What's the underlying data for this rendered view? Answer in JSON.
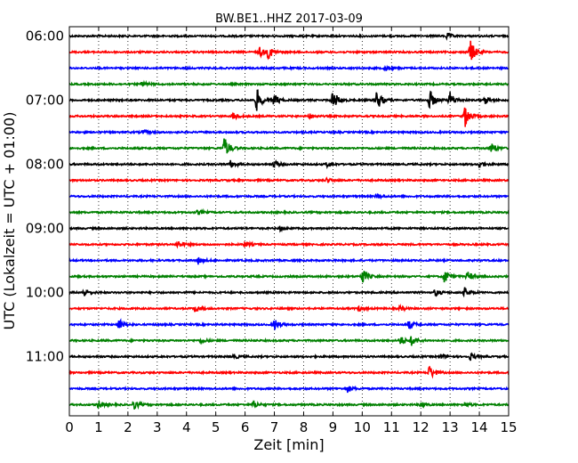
{
  "chart_data": {
    "type": "line",
    "title": "BW.BE1..HHZ 2017-03-09",
    "xlabel": "Zeit  [min]",
    "ylabel": "UTC (Lokalzeit = UTC + 01:00)",
    "xlim": [
      0,
      15
    ],
    "x_ticks": [
      "0",
      "1",
      "2",
      "3",
      "4",
      "5",
      "6",
      "7",
      "8",
      "9",
      "10",
      "11",
      "12",
      "13",
      "14",
      "15"
    ],
    "y_tick_labels": [
      "06:00",
      "07:00",
      "08:00",
      "09:00",
      "10:00",
      "11:00"
    ],
    "grid": "vertical dotted",
    "line_colors": [
      "#000000",
      "#ff0000",
      "#0000ff",
      "#008000"
    ],
    "traces": [
      {
        "start": "06:00",
        "events": [
          [
            12.9,
            0.25
          ]
        ]
      },
      {
        "start": "06:15",
        "events": [
          [
            6.5,
            0.4
          ],
          [
            6.8,
            0.55
          ],
          [
            13.7,
            1.0
          ]
        ]
      },
      {
        "start": "06:30",
        "events": [
          [
            10.8,
            0.2
          ]
        ]
      },
      {
        "start": "06:45",
        "events": [
          [
            2.5,
            0.2
          ]
        ]
      },
      {
        "start": "07:00",
        "events": [
          [
            6.4,
            1.0
          ],
          [
            7.0,
            0.5
          ],
          [
            9.0,
            0.9
          ],
          [
            10.5,
            0.9
          ],
          [
            12.3,
            0.9
          ],
          [
            13.0,
            0.7
          ],
          [
            14.2,
            0.3
          ]
        ]
      },
      {
        "start": "07:15",
        "events": [
          [
            5.6,
            0.3
          ],
          [
            8.2,
            0.2
          ],
          [
            13.5,
            1.0
          ]
        ]
      },
      {
        "start": "07:30",
        "events": [
          [
            2.5,
            0.2
          ]
        ]
      },
      {
        "start": "07:45",
        "events": [
          [
            5.3,
            1.0
          ],
          [
            14.4,
            0.5
          ]
        ]
      },
      {
        "start": "08:00",
        "events": [
          [
            5.5,
            0.3
          ],
          [
            7.0,
            0.3
          ],
          [
            8.8,
            0.2
          ],
          [
            14.0,
            0.3
          ]
        ]
      },
      {
        "start": "08:15",
        "events": [
          [
            8.8,
            0.2
          ]
        ]
      },
      {
        "start": "08:30",
        "events": [
          [
            10.5,
            0.2
          ]
        ]
      },
      {
        "start": "08:45",
        "events": [
          [
            4.4,
            0.2
          ]
        ]
      },
      {
        "start": "09:00",
        "events": [
          [
            7.2,
            0.2
          ]
        ]
      },
      {
        "start": "09:15",
        "events": [
          [
            3.7,
            0.3
          ],
          [
            6.0,
            0.2
          ]
        ]
      },
      {
        "start": "09:30",
        "events": [
          [
            4.4,
            0.3
          ]
        ]
      },
      {
        "start": "09:45",
        "events": [
          [
            10.0,
            0.7
          ],
          [
            12.8,
            0.6
          ],
          [
            13.6,
            0.4
          ]
        ]
      },
      {
        "start": "10:00",
        "events": [
          [
            0.5,
            0.35
          ],
          [
            12.5,
            0.3
          ],
          [
            13.5,
            0.4
          ]
        ]
      },
      {
        "start": "10:15",
        "events": [
          [
            4.3,
            0.3
          ],
          [
            9.9,
            0.2
          ],
          [
            11.3,
            0.2
          ]
        ]
      },
      {
        "start": "10:30",
        "events": [
          [
            1.7,
            0.5
          ],
          [
            7.0,
            0.5
          ],
          [
            11.6,
            0.4
          ]
        ]
      },
      {
        "start": "10:45",
        "events": [
          [
            4.5,
            0.2
          ],
          [
            11.3,
            0.4
          ],
          [
            11.7,
            0.5
          ]
        ]
      },
      {
        "start": "11:00",
        "events": [
          [
            5.6,
            0.2
          ],
          [
            12.7,
            0.2
          ],
          [
            13.7,
            0.3
          ]
        ]
      },
      {
        "start": "11:15",
        "events": [
          [
            12.3,
            0.6
          ]
        ]
      },
      {
        "start": "11:30",
        "events": [
          [
            9.5,
            0.3
          ]
        ]
      },
      {
        "start": "11:45",
        "events": [
          [
            1.0,
            0.3
          ],
          [
            2.2,
            0.4
          ],
          [
            6.3,
            0.3
          ],
          [
            12.0,
            0.2
          ],
          [
            13.5,
            0.2
          ]
        ]
      }
    ]
  }
}
